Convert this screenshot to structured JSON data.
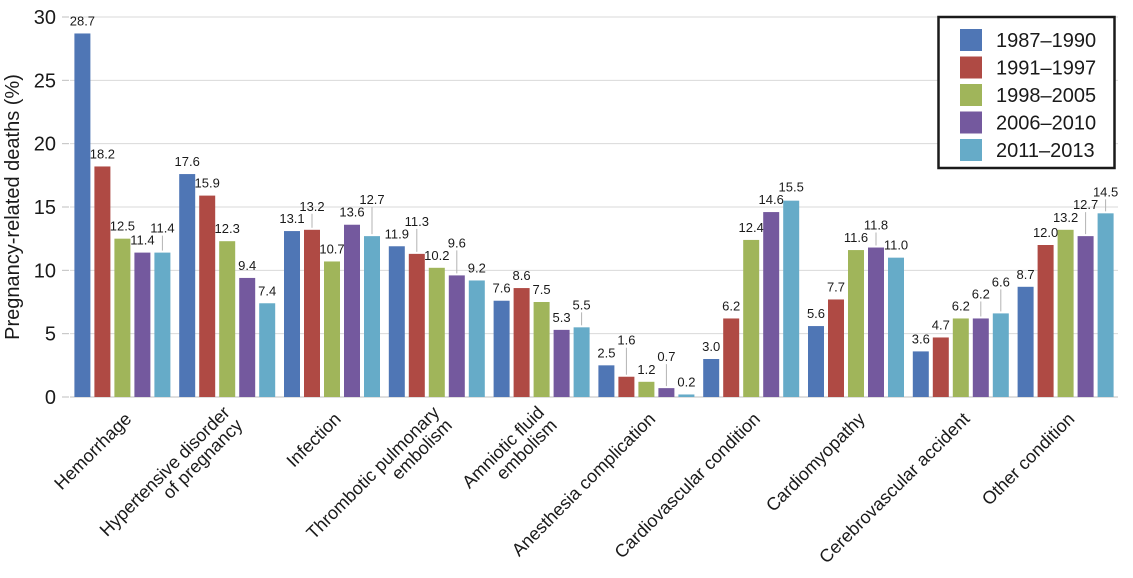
{
  "chart_data": {
    "type": "bar",
    "title": "",
    "xlabel": "",
    "ylabel": "Pregnancy-related deaths (%)",
    "ylim": [
      0,
      30
    ],
    "yticks": [
      0,
      5,
      10,
      15,
      20,
      25,
      30
    ],
    "grid": true,
    "legend_position": "top-right",
    "value_labels": true,
    "value_label_format": "one-decimal",
    "categories": [
      [
        "Hemorrhage"
      ],
      [
        "Hypertensive disorder",
        "of pregnancy"
      ],
      [
        "Infection"
      ],
      [
        "Thrombotic pulmonary",
        "embolism"
      ],
      [
        "Amniotic fluid",
        "embolism"
      ],
      [
        "Anesthesia complication"
      ],
      [
        "Cardiovascular condition"
      ],
      [
        "Cardiomyopathy"
      ],
      [
        "Cerebrovascular accident"
      ],
      [
        "Other condition"
      ]
    ],
    "series": [
      {
        "name": "1987–1990",
        "color": "#4F76B5",
        "values": [
          28.7,
          17.6,
          13.1,
          11.9,
          7.6,
          2.5,
          3.0,
          5.6,
          3.6,
          8.7
        ]
      },
      {
        "name": "1991–1997",
        "color": "#AF4A44",
        "values": [
          18.2,
          15.9,
          13.2,
          11.3,
          8.6,
          1.6,
          6.2,
          7.7,
          4.7,
          12.0
        ]
      },
      {
        "name": "1998–2005",
        "color": "#A0B55A",
        "values": [
          12.5,
          12.3,
          10.7,
          10.2,
          7.5,
          1.2,
          12.4,
          11.6,
          6.2,
          13.2
        ]
      },
      {
        "name": "2006–2010",
        "color": "#74599E",
        "values": [
          11.4,
          9.4,
          13.6,
          9.6,
          5.3,
          0.7,
          14.6,
          11.8,
          6.2,
          12.7
        ]
      },
      {
        "name": "2011–2013",
        "color": "#66ABC8",
        "values": [
          11.4,
          7.4,
          12.7,
          9.2,
          5.5,
          0.2,
          15.5,
          11.0,
          6.6,
          14.5
        ]
      }
    ],
    "style_colors": {
      "gridline": "#D9D9D9",
      "axis_line": "#BFBFBF",
      "tick": "#BFBFBF",
      "text": "#1A1A1A",
      "leader_line": "#B3B3B3",
      "legend_border": "#1A1A1A",
      "background": "#FFFFFF"
    }
  }
}
